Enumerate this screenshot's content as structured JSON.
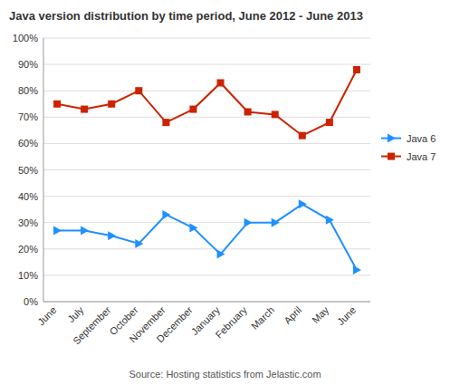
{
  "chart_data": {
    "type": "line",
    "title": "Java version distribution by time period, June 2012 - June 2013",
    "annotations": [
      "Source: Hosting statistics from Jelastic.com"
    ],
    "categories": [
      "June",
      "July",
      "September",
      "October",
      "November",
      "December",
      "January",
      "February",
      "March",
      "April",
      "May",
      "June"
    ],
    "series": [
      {
        "name": "Java 6",
        "color": "#1e90ff",
        "marker": "triangle",
        "values": [
          27,
          27,
          25,
          22,
          33,
          28,
          18,
          30,
          30,
          37,
          31,
          12
        ]
      },
      {
        "name": "Java 7",
        "color": "#cc2200",
        "marker": "square",
        "values": [
          75,
          73,
          75,
          80,
          68,
          73,
          83,
          72,
          71,
          63,
          68,
          88
        ]
      }
    ],
    "ylim": [
      0,
      100
    ],
    "yticks": [
      {
        "value": 0,
        "label": "0%"
      },
      {
        "value": 10,
        "label": "10%"
      },
      {
        "value": 20,
        "label": "20%"
      },
      {
        "value": 30,
        "label": "30%"
      },
      {
        "value": 40,
        "label": "40%"
      },
      {
        "value": 50,
        "label": "50%"
      },
      {
        "value": 60,
        "label": "60%"
      },
      {
        "value": 70,
        "label": "70%"
      },
      {
        "value": 80,
        "label": "80%"
      },
      {
        "value": 90,
        "label": "90%"
      },
      {
        "value": 100,
        "label": "100%"
      }
    ],
    "grid": true,
    "legend": "right"
  }
}
